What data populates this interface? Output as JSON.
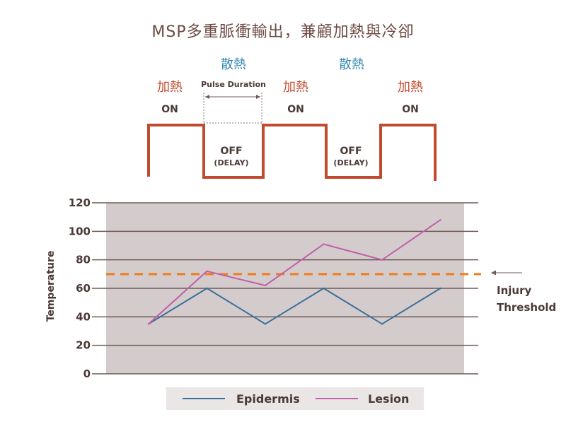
{
  "chart_data": {
    "type": "line",
    "title": "MSP多重脈衝輸出，兼顧加熱與冷卻",
    "ylabel": "Temperature",
    "xlabel": "",
    "ylim": [
      0,
      120
    ],
    "yticks": [
      "0",
      "20",
      "40",
      "60",
      "80",
      "100",
      "120"
    ],
    "threshold": {
      "value": 70,
      "label_line1": "Injury",
      "label_line2": "Threshold"
    },
    "x": [
      0,
      1,
      2,
      3,
      4,
      5
    ],
    "series": [
      {
        "name": "Epidermis",
        "color": "#3a6f99",
        "values": [
          35,
          60,
          35,
          60,
          35,
          60
        ]
      },
      {
        "name": "Lesion",
        "color": "#c060a8",
        "values": [
          35,
          72,
          62,
          91,
          80,
          108
        ]
      }
    ],
    "pulse_diagram": {
      "heat_label": "加熱",
      "cool_label": "散熱",
      "on_label": "ON",
      "off_label": "OFF",
      "delay_label": "(DELAY)",
      "pulse_duration_label": "Pulse Duration"
    },
    "colors": {
      "pulse": "#c24a2e",
      "plot_bg": "#d4cccc",
      "grid": "#6e5a56",
      "threshold": "#f07c1e",
      "legend_bg": "#ebe6e6"
    }
  }
}
